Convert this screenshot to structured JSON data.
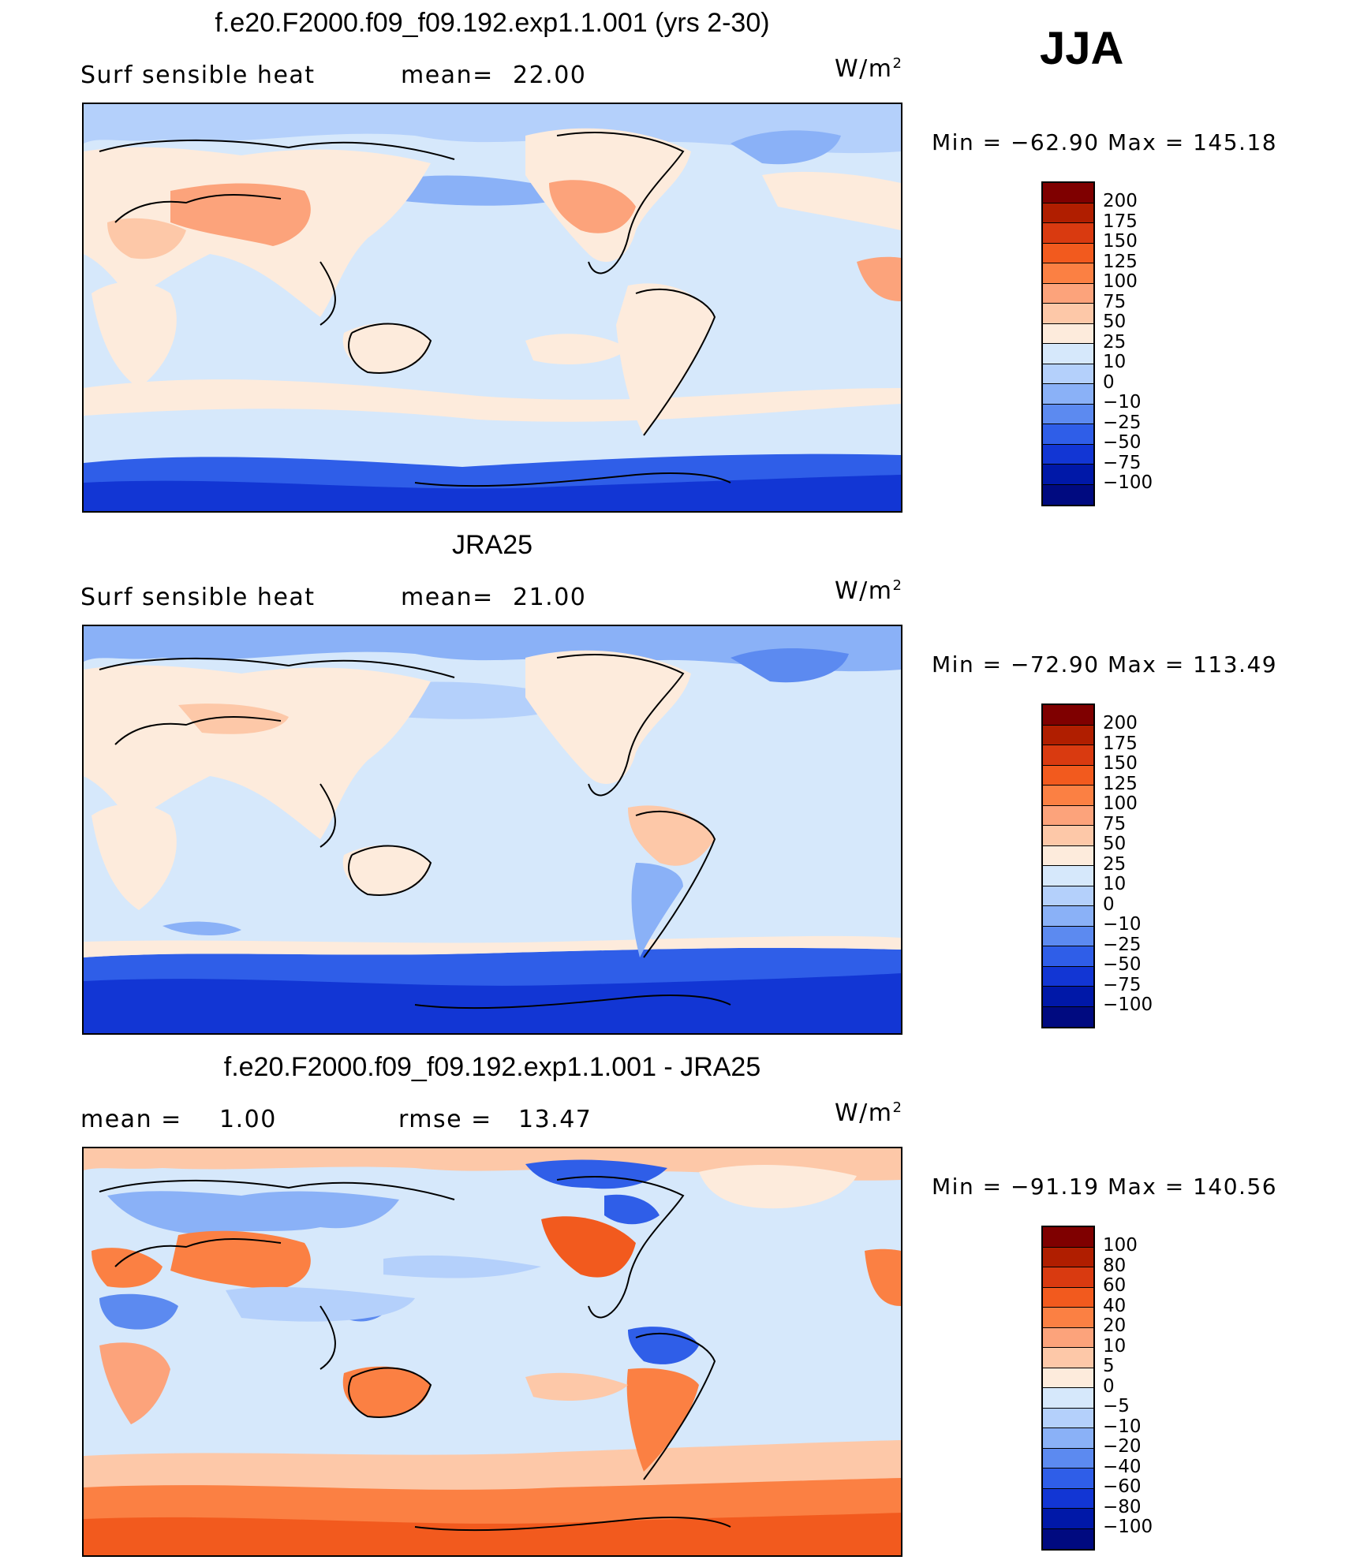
{
  "season": "JJA",
  "panels": [
    {
      "title": "f.e20.F2000.f09_f09.192.exp1.1.001 (yrs 2-30)",
      "left_text": "Surf  sensible  heat",
      "stat1_label": "mean=",
      "stat1_value": "22.00",
      "stat2_label": "",
      "stat2_value": "",
      "units": "W/m",
      "units_sup": "2",
      "minmax": "Min  =  −62.90  Max  =  145.18",
      "colorbar": {
        "labels": [
          "200",
          "175",
          "150",
          "125",
          "100",
          "75",
          "50",
          "25",
          "10",
          "0",
          "−10",
          "−25",
          "−50",
          "−75",
          "−100"
        ],
        "colors": [
          "#7f0000",
          "#b01e00",
          "#d93a10",
          "#f25a1e",
          "#fb8043",
          "#fca37b",
          "#fdc8a8",
          "#fdebdc",
          "#d6e8fb",
          "#b4d0fb",
          "#8ab1f7",
          "#5c8af0",
          "#2f5ee8",
          "#1236d4",
          "#0018a8",
          "#000a80"
        ]
      }
    },
    {
      "title": "JRA25",
      "left_text": "Surf  sensible  heat",
      "stat1_label": "mean=",
      "stat1_value": "21.00",
      "stat2_label": "",
      "stat2_value": "",
      "units": "W/m",
      "units_sup": "2",
      "minmax": "Min  =  −72.90  Max  =  113.49",
      "colorbar": {
        "labels": [
          "200",
          "175",
          "150",
          "125",
          "100",
          "75",
          "50",
          "25",
          "10",
          "0",
          "−10",
          "−25",
          "−50",
          "−75",
          "−100"
        ],
        "colors": [
          "#7f0000",
          "#b01e00",
          "#d93a10",
          "#f25a1e",
          "#fb8043",
          "#fca37b",
          "#fdc8a8",
          "#fdebdc",
          "#d6e8fb",
          "#b4d0fb",
          "#8ab1f7",
          "#5c8af0",
          "#2f5ee8",
          "#1236d4",
          "#0018a8",
          "#000a80"
        ]
      }
    },
    {
      "title": "f.e20.F2000.f09_f09.192.exp1.1.001 - JRA25",
      "left_text": "mean  =",
      "stat1_label": "",
      "stat1_value": "1.00",
      "stat2_label": "rmse  =",
      "stat2_value": "13.47",
      "units": "W/m",
      "units_sup": "2",
      "minmax": "Min  =  −91.19  Max  =  140.56",
      "colorbar": {
        "labels": [
          "100",
          "80",
          "60",
          "40",
          "20",
          "10",
          "5",
          "0",
          "−5",
          "−10",
          "−20",
          "−40",
          "−60",
          "−80",
          "−100"
        ],
        "colors": [
          "#7f0000",
          "#b01e00",
          "#d93a10",
          "#f25a1e",
          "#fb8043",
          "#fca37b",
          "#fdc8a8",
          "#fdebdc",
          "#d6e8fb",
          "#b4d0fb",
          "#8ab1f7",
          "#5c8af0",
          "#2f5ee8",
          "#1236d4",
          "#0018a8",
          "#000a80"
        ]
      }
    }
  ]
}
